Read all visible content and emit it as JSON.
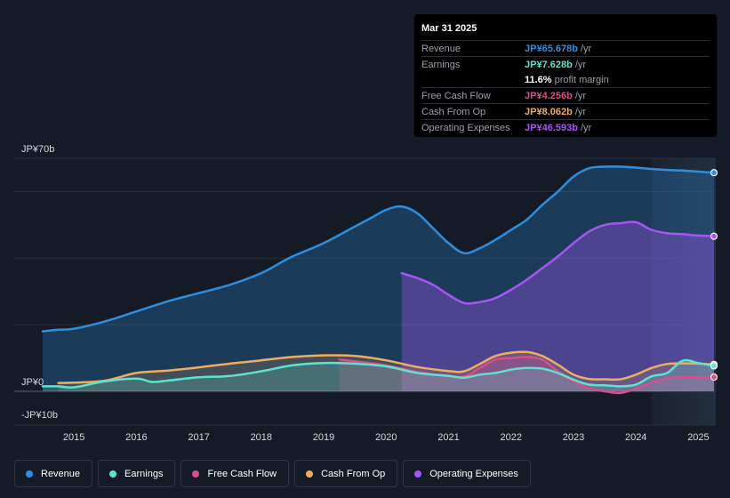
{
  "chart_data": {
    "type": "area",
    "title": "",
    "y_label_top": "JP¥70b",
    "y_label_zero": "JP¥0",
    "y_label_bottom": "-JP¥10b",
    "ylim": [
      -10,
      70
    ],
    "xlim": [
      2014.5,
      2025.25
    ],
    "x_ticks": [
      "2015",
      "2016",
      "2017",
      "2018",
      "2019",
      "2020",
      "2021",
      "2022",
      "2023",
      "2024",
      "2025"
    ],
    "forecast_start": 2024.25,
    "series": [
      {
        "name": "Revenue",
        "key": "revenue",
        "color": "#2e8fe0",
        "x": [
          2014.5,
          2014.75,
          2015.0,
          2015.5,
          2016.0,
          2016.5,
          2017.0,
          2017.5,
          2018.0,
          2018.25,
          2018.5,
          2019.0,
          2019.5,
          2019.75,
          2020.0,
          2020.25,
          2020.5,
          2020.75,
          2021.0,
          2021.25,
          2021.5,
          2021.75,
          2022.0,
          2022.25,
          2022.5,
          2022.75,
          2023.0,
          2023.25,
          2023.5,
          2023.75,
          2024.0,
          2024.25,
          2024.5,
          2024.75,
          2025.0,
          2025.25
        ],
        "values": [
          18.0,
          18.5,
          18.8,
          21.0,
          24.0,
          27.0,
          29.5,
          32.0,
          35.5,
          38.0,
          40.5,
          44.5,
          49.5,
          52.0,
          54.5,
          55.5,
          53.5,
          49.0,
          44.5,
          41.5,
          43.0,
          45.5,
          48.5,
          51.5,
          56.0,
          60.0,
          64.5,
          67.0,
          67.5,
          67.5,
          67.2,
          66.8,
          66.5,
          66.3,
          66.0,
          65.678
        ]
      },
      {
        "name": "Operating Expenses",
        "key": "opex",
        "color": "#a855f7",
        "x": [
          2020.25,
          2020.5,
          2020.75,
          2021.0,
          2021.25,
          2021.5,
          2021.75,
          2022.0,
          2022.25,
          2022.5,
          2022.75,
          2023.0,
          2023.25,
          2023.5,
          2023.75,
          2024.0,
          2024.25,
          2024.5,
          2024.75,
          2025.0,
          2025.25
        ],
        "values": [
          35.5,
          34.0,
          32.0,
          29.0,
          26.5,
          26.8,
          28.0,
          30.5,
          33.5,
          37.0,
          40.5,
          44.5,
          48.0,
          50.0,
          50.5,
          50.8,
          48.5,
          47.5,
          47.2,
          46.8,
          46.593
        ]
      },
      {
        "name": "Cash From Op",
        "key": "cfo",
        "color": "#f0ad5c",
        "x": [
          2014.75,
          2015.0,
          2015.5,
          2016.0,
          2016.5,
          2017.0,
          2017.5,
          2018.0,
          2018.5,
          2019.0,
          2019.5,
          2020.0,
          2020.5,
          2021.0,
          2021.25,
          2021.5,
          2021.75,
          2022.0,
          2022.25,
          2022.5,
          2022.75,
          2023.0,
          2023.25,
          2023.5,
          2023.75,
          2024.0,
          2024.25,
          2024.5,
          2024.75,
          2025.0,
          2025.25
        ],
        "values": [
          2.5,
          2.6,
          3.2,
          5.5,
          6.2,
          7.2,
          8.3,
          9.3,
          10.3,
          10.8,
          10.6,
          9.3,
          7.3,
          6.1,
          6.0,
          8.2,
          10.6,
          11.6,
          11.8,
          10.6,
          8.0,
          5.0,
          3.7,
          3.6,
          3.6,
          5.0,
          7.0,
          8.2,
          8.4,
          8.3,
          8.062
        ]
      },
      {
        "name": "Free Cash Flow",
        "key": "fcf",
        "color": "#d84f8a",
        "x": [
          2019.25,
          2019.5,
          2020.0,
          2020.5,
          2021.0,
          2021.25,
          2021.5,
          2021.75,
          2022.0,
          2022.25,
          2022.5,
          2022.75,
          2023.0,
          2023.25,
          2023.5,
          2023.75,
          2024.0,
          2024.25,
          2024.5,
          2024.75,
          2025.0,
          2025.25
        ],
        "values": [
          9.5,
          9.0,
          7.8,
          5.8,
          4.6,
          4.4,
          7.0,
          9.5,
          10.0,
          10.3,
          9.5,
          6.0,
          3.0,
          1.0,
          0.0,
          -0.5,
          0.8,
          2.5,
          3.9,
          4.3,
          4.3,
          4.256
        ]
      },
      {
        "name": "Earnings",
        "key": "earnings",
        "color": "#5fe3cf",
        "x": [
          2014.5,
          2014.75,
          2015.0,
          2015.5,
          2016.0,
          2016.25,
          2016.5,
          2017.0,
          2017.5,
          2018.0,
          2018.5,
          2019.0,
          2019.5,
          2020.0,
          2020.5,
          2021.0,
          2021.25,
          2021.5,
          2021.75,
          2022.0,
          2022.25,
          2022.5,
          2022.75,
          2023.0,
          2023.25,
          2023.5,
          2023.75,
          2024.0,
          2024.25,
          2024.5,
          2024.75,
          2025.0,
          2025.25
        ],
        "values": [
          1.5,
          1.5,
          1.2,
          3.0,
          3.8,
          2.8,
          3.2,
          4.2,
          4.6,
          6.0,
          7.8,
          8.5,
          8.3,
          7.5,
          5.5,
          4.6,
          4.1,
          5.0,
          5.5,
          6.5,
          7.0,
          6.8,
          5.5,
          3.5,
          2.0,
          1.8,
          1.5,
          2.0,
          4.5,
          5.5,
          9.2,
          8.5,
          7.628
        ]
      }
    ]
  },
  "tooltip": {
    "date": "Mar 31 2025",
    "revenue": {
      "label": "Revenue",
      "value": "JP¥65.678b",
      "unit": "/yr",
      "color": "#2e8fe0"
    },
    "earnings": {
      "label": "Earnings",
      "value": "JP¥7.628b",
      "unit": "/yr",
      "color": "#5fe3cf"
    },
    "margin": {
      "value": "11.6%",
      "text": "profit margin"
    },
    "fcf": {
      "label": "Free Cash Flow",
      "value": "JP¥4.256b",
      "unit": "/yr",
      "color": "#d84f8a"
    },
    "cfo": {
      "label": "Cash From Op",
      "value": "JP¥8.062b",
      "unit": "/yr",
      "color": "#f0ad5c"
    },
    "opex": {
      "label": "Operating Expenses",
      "value": "JP¥46.593b",
      "unit": "/yr",
      "color": "#a855f7"
    }
  },
  "legend": [
    {
      "label": "Revenue",
      "color": "#2e8fe0"
    },
    {
      "label": "Earnings",
      "color": "#5fe3cf"
    },
    {
      "label": "Free Cash Flow",
      "color": "#d84f8a"
    },
    {
      "label": "Cash From Op",
      "color": "#f0ad5c"
    },
    {
      "label": "Operating Expenses",
      "color": "#a855f7"
    }
  ]
}
